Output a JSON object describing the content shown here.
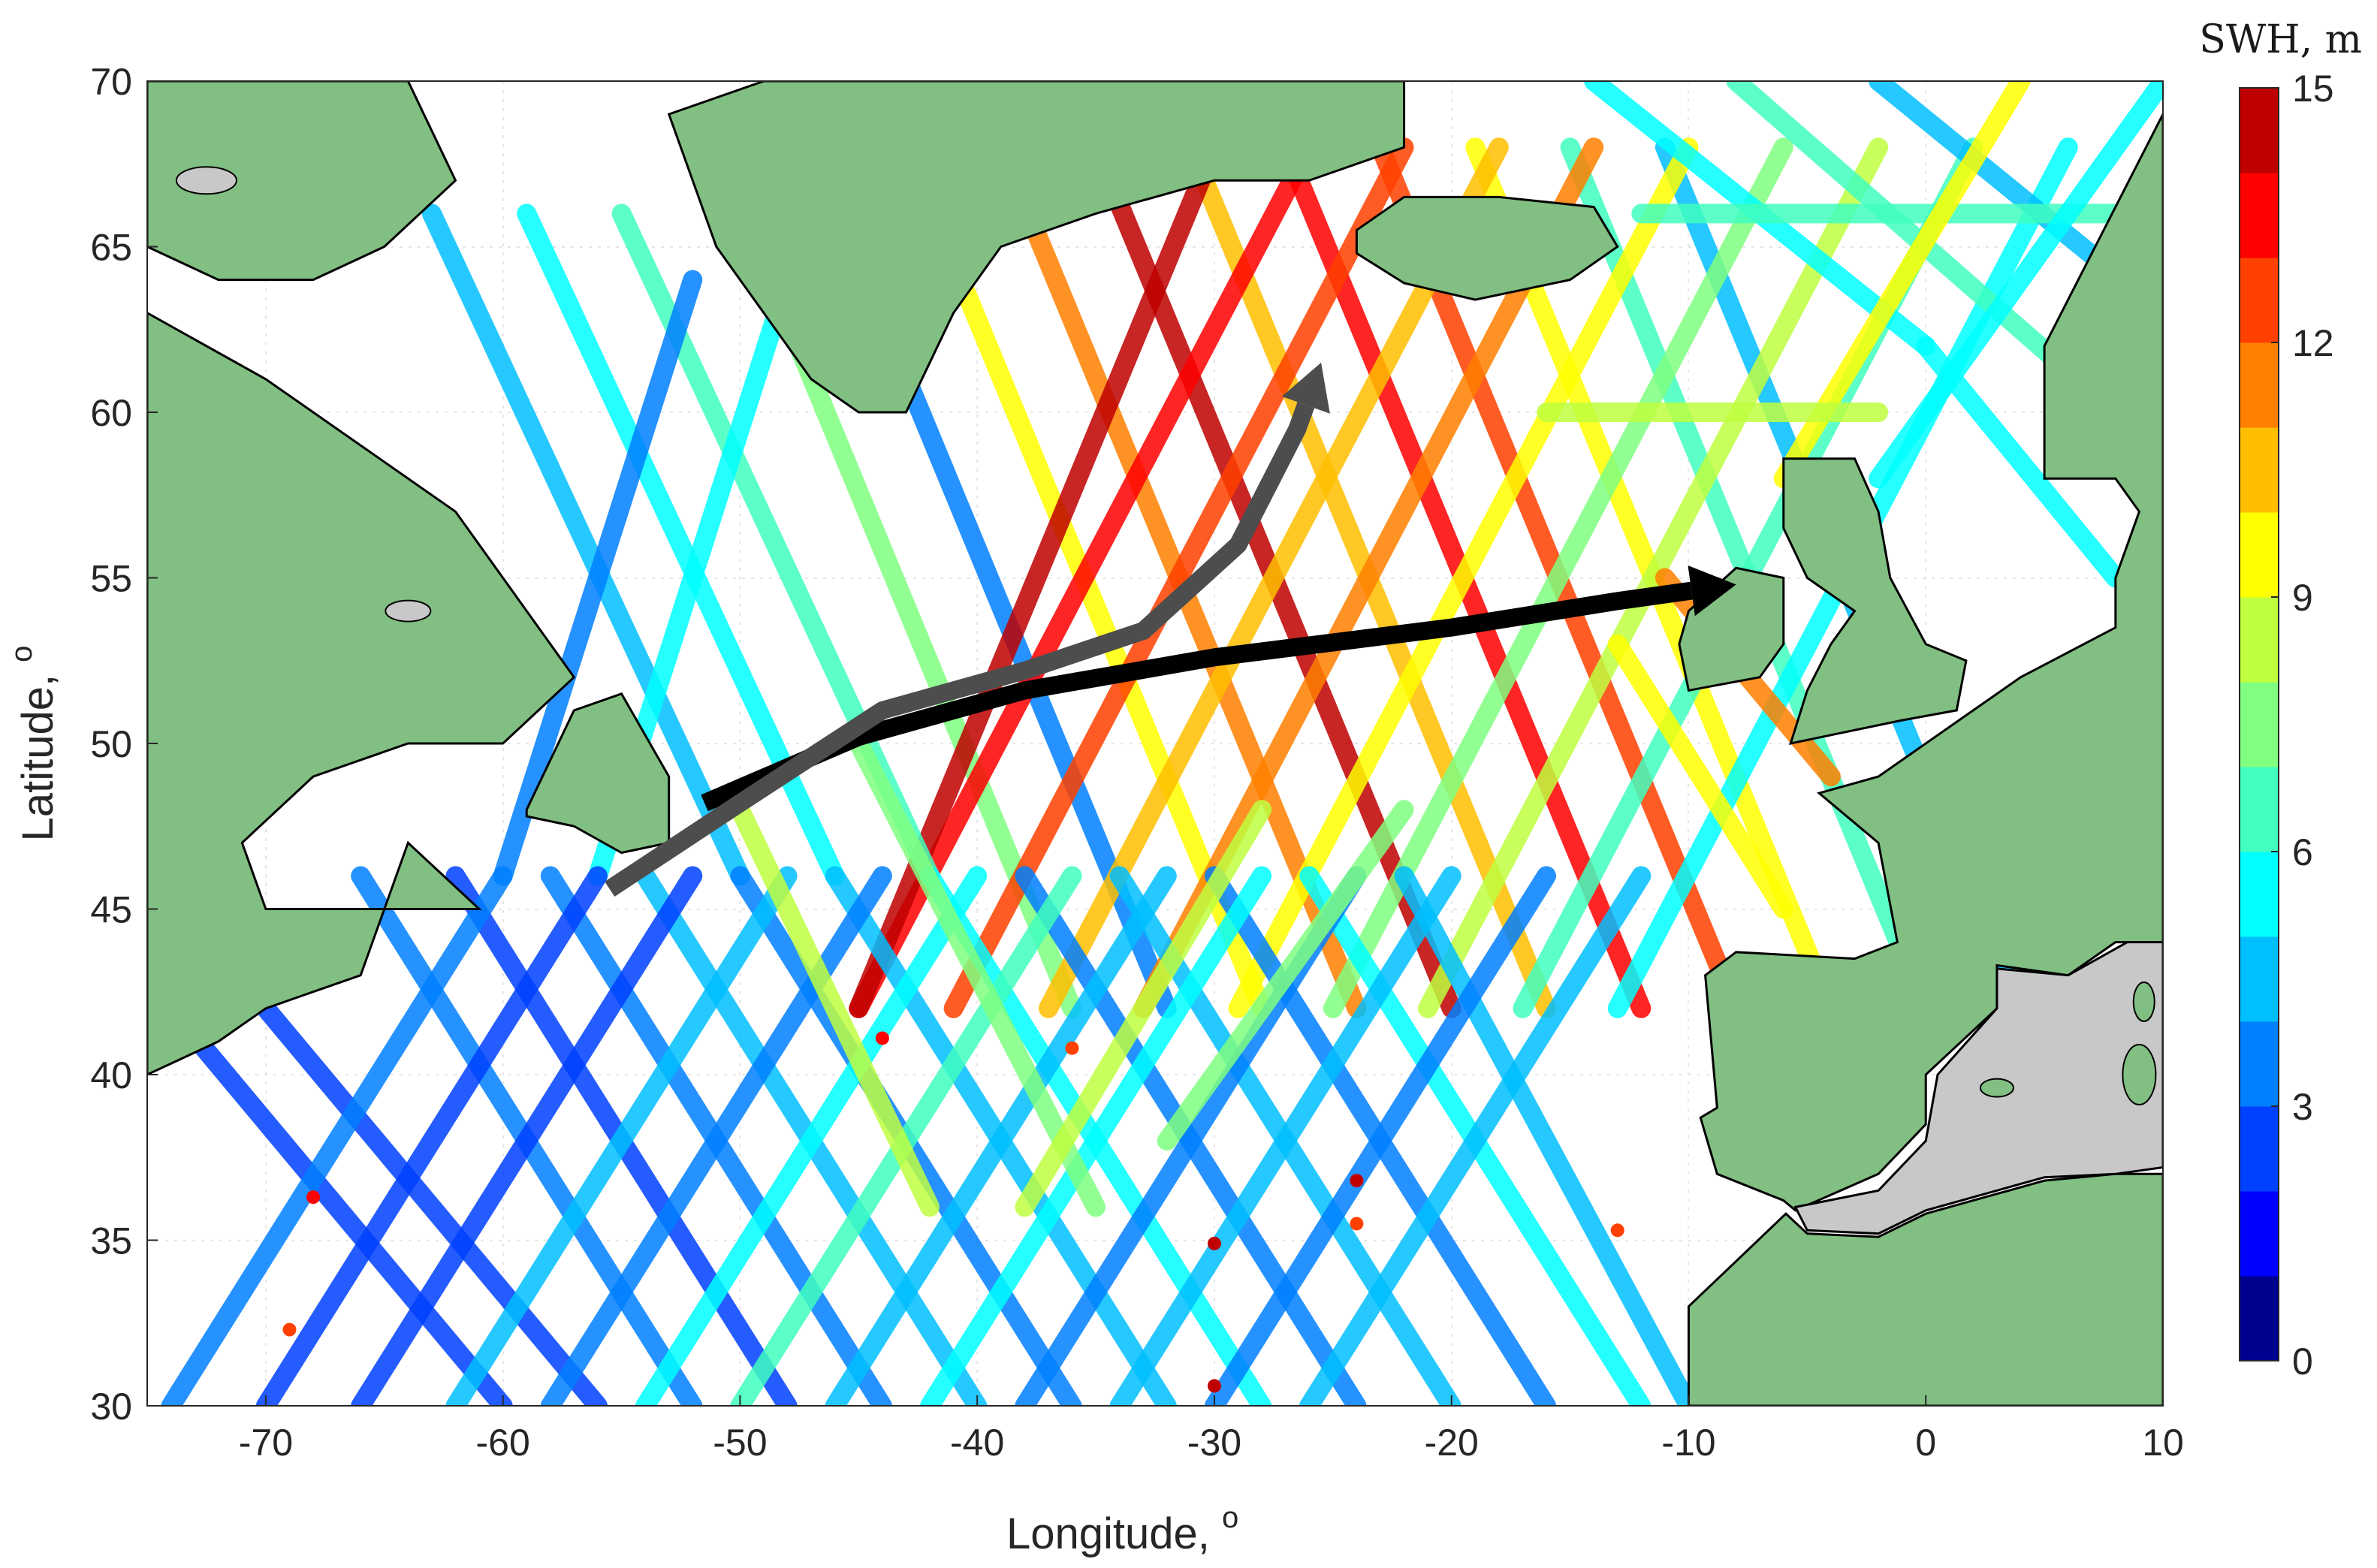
{
  "chart_data": {
    "type": "map",
    "xlabel": "Longitude, ",
    "xlabel_superscript": "o",
    "ylabel": "Latitude, ",
    "ylabel_superscript": "o",
    "xlim": [
      -75,
      10
    ],
    "ylim": [
      30,
      70
    ],
    "x_ticks": [
      "-70",
      "-60",
      "-50",
      "-40",
      "-30",
      "-20",
      "-10",
      "0",
      "10"
    ],
    "y_ticks": [
      "30",
      "35",
      "40",
      "45",
      "50",
      "55",
      "60",
      "65",
      "70"
    ],
    "colorbar": {
      "title": "SWH, m",
      "range": [
        0,
        15
      ],
      "ticks": [
        "0",
        "3",
        "6",
        "9",
        "12",
        "15"
      ],
      "colormap": [
        "#00008f",
        "#0000ff",
        "#0040ff",
        "#0080ff",
        "#00bfff",
        "#00ffff",
        "#40ffbf",
        "#80ff80",
        "#bfff40",
        "#ffff00",
        "#ffbf00",
        "#ff8000",
        "#ff4000",
        "#ff0000",
        "#bf0000"
      ]
    },
    "colors": {
      "land": "#82bf82",
      "inland_water": "#c8c8c8",
      "ocean": "#ffffff",
      "coastline": "#000000"
    },
    "storm_tracks": [
      {
        "color": "#000000",
        "points": [
          [
            -51.5,
            48.2
          ],
          [
            -45,
            50.2
          ],
          [
            -38,
            51.6
          ],
          [
            -30,
            52.6
          ],
          [
            -20,
            53.5
          ],
          [
            -13,
            54.3
          ],
          [
            -8,
            54.8
          ]
        ]
      },
      {
        "color": "#4d4d4d",
        "points": [
          [
            -55.5,
            45.6
          ],
          [
            -50,
            48.2
          ],
          [
            -44,
            51.0
          ],
          [
            -38,
            52.2
          ],
          [
            -33,
            53.4
          ],
          [
            -29,
            56.0
          ],
          [
            -26.5,
            59.5
          ],
          [
            -25.5,
            61.5
          ]
        ]
      }
    ],
    "altimeter_tracks": [
      {
        "lon": [
          -51,
          -36
        ],
        "lat": [
          68,
          42
        ],
        "swh": 7
      },
      {
        "lon": [
          -47,
          -32
        ],
        "lat": [
          68,
          42
        ],
        "swh": 3
      },
      {
        "lon": [
          -43,
          -28
        ],
        "lat": [
          68,
          42
        ],
        "swh": 9
      },
      {
        "lon": [
          -39,
          -24
        ],
        "lat": [
          68,
          42
        ],
        "swh": 11
      },
      {
        "lon": [
          -35,
          -20
        ],
        "lat": [
          68,
          42
        ],
        "swh": 14
      },
      {
        "lon": [
          -31,
          -16
        ],
        "lat": [
          68,
          42
        ],
        "swh": 10
      },
      {
        "lon": [
          -27,
          -12
        ],
        "lat": [
          68,
          42
        ],
        "swh": 13
      },
      {
        "lon": [
          -23,
          -8
        ],
        "lat": [
          68,
          42
        ],
        "swh": 12
      },
      {
        "lon": [
          -19,
          -4
        ],
        "lat": [
          68,
          42
        ],
        "swh": 9
      },
      {
        "lon": [
          -15,
          0
        ],
        "lat": [
          68,
          42
        ],
        "swh": 6
      },
      {
        "lon": [
          -11,
          4
        ],
        "lat": [
          68,
          42
        ],
        "swh": 4
      },
      {
        "lon": [
          -26,
          -45
        ],
        "lat": [
          68,
          42
        ],
        "swh": 13
      },
      {
        "lon": [
          -22,
          -41
        ],
        "lat": [
          68,
          42
        ],
        "swh": 12
      },
      {
        "lon": [
          -18,
          -37
        ],
        "lat": [
          68,
          42
        ],
        "swh": 10
      },
      {
        "lon": [
          -14,
          -33
        ],
        "lat": [
          68,
          42
        ],
        "swh": 11
      },
      {
        "lon": [
          -10,
          -29
        ],
        "lat": [
          68,
          42
        ],
        "swh": 9
      },
      {
        "lon": [
          -6,
          -25
        ],
        "lat": [
          68,
          42
        ],
        "swh": 7
      },
      {
        "lon": [
          -2,
          -21
        ],
        "lat": [
          68,
          42
        ],
        "swh": 8
      },
      {
        "lon": [
          2,
          -17
        ],
        "lat": [
          68,
          42
        ],
        "swh": 6
      },
      {
        "lon": [
          6,
          -13
        ],
        "lat": [
          68,
          42
        ],
        "swh": 5
      },
      {
        "lon": [
          -30,
          -45
        ],
        "lat": [
          68,
          42
        ],
        "swh": 14
      },
      {
        "lon": [
          -63,
          -50
        ],
        "lat": [
          66,
          46
        ],
        "swh": 4
      },
      {
        "lon": [
          -59,
          -46
        ],
        "lat": [
          66,
          46
        ],
        "swh": 5
      },
      {
        "lon": [
          -55,
          -42
        ],
        "lat": [
          66,
          46
        ],
        "swh": 6
      },
      {
        "lon": [
          -52,
          -60
        ],
        "lat": [
          64,
          46
        ],
        "swh": 3
      },
      {
        "lon": [
          -48,
          -56
        ],
        "lat": [
          64,
          46
        ],
        "swh": 5
      },
      {
        "lon": [
          -74,
          -60
        ],
        "lat": [
          42,
          30
        ],
        "swh": 2
      },
      {
        "lon": [
          -70,
          -56
        ],
        "lat": [
          42,
          30
        ],
        "swh": 2
      },
      {
        "lon": [
          -66,
          -52
        ],
        "lat": [
          46,
          30
        ],
        "swh": 3
      },
      {
        "lon": [
          -62,
          -48
        ],
        "lat": [
          46,
          30
        ],
        "swh": 2
      },
      {
        "lon": [
          -58,
          -44
        ],
        "lat": [
          46,
          30
        ],
        "swh": 3
      },
      {
        "lon": [
          -54,
          -40
        ],
        "lat": [
          46,
          30
        ],
        "swh": 4
      },
      {
        "lon": [
          -50,
          -36
        ],
        "lat": [
          46,
          30
        ],
        "swh": 3
      },
      {
        "lon": [
          -46,
          -32
        ],
        "lat": [
          46,
          30
        ],
        "swh": 4
      },
      {
        "lon": [
          -42,
          -28
        ],
        "lat": [
          46,
          30
        ],
        "swh": 5
      },
      {
        "lon": [
          -38,
          -24
        ],
        "lat": [
          46,
          30
        ],
        "swh": 3
      },
      {
        "lon": [
          -34,
          -20
        ],
        "lat": [
          46,
          30
        ],
        "swh": 4
      },
      {
        "lon": [
          -30,
          -16
        ],
        "lat": [
          46,
          30
        ],
        "swh": 3
      },
      {
        "lon": [
          -26,
          -12
        ],
        "lat": [
          46,
          30
        ],
        "swh": 5
      },
      {
        "lon": [
          -22,
          -10
        ],
        "lat": [
          46,
          30
        ],
        "swh": 4
      },
      {
        "lon": [
          -60,
          -74
        ],
        "lat": [
          46,
          30
        ],
        "swh": 3
      },
      {
        "lon": [
          -56,
          -70
        ],
        "lat": [
          46,
          30
        ],
        "swh": 2
      },
      {
        "lon": [
          -52,
          -66
        ],
        "lat": [
          46,
          30
        ],
        "swh": 2
      },
      {
        "lon": [
          -48,
          -62
        ],
        "lat": [
          46,
          30
        ],
        "swh": 4
      },
      {
        "lon": [
          -44,
          -58
        ],
        "lat": [
          46,
          30
        ],
        "swh": 3
      },
      {
        "lon": [
          -40,
          -54
        ],
        "lat": [
          46,
          30
        ],
        "swh": 5
      },
      {
        "lon": [
          -36,
          -50
        ],
        "lat": [
          46,
          30
        ],
        "swh": 6
      },
      {
        "lon": [
          -32,
          -46
        ],
        "lat": [
          46,
          30
        ],
        "swh": 4
      },
      {
        "lon": [
          -28,
          -42
        ],
        "lat": [
          46,
          30
        ],
        "swh": 5
      },
      {
        "lon": [
          -24,
          -38
        ],
        "lat": [
          46,
          30
        ],
        "swh": 3
      },
      {
        "lon": [
          -20,
          -34
        ],
        "lat": [
          46,
          30
        ],
        "swh": 4
      },
      {
        "lon": [
          -16,
          -30
        ],
        "lat": [
          46,
          30
        ],
        "swh": 3
      },
      {
        "lon": [
          -12,
          -26
        ],
        "lat": [
          46,
          30
        ],
        "swh": 4
      },
      {
        "lon": [
          -50,
          -42
        ],
        "lat": [
          48,
          36
        ],
        "swh": 8
      },
      {
        "lon": [
          -45,
          -35
        ],
        "lat": [
          50,
          36
        ],
        "swh": 7
      },
      {
        "lon": [
          -28,
          -38
        ],
        "lat": [
          48,
          36
        ],
        "swh": 8
      },
      {
        "lon": [
          -22,
          -32
        ],
        "lat": [
          48,
          38
        ],
        "swh": 7
      },
      {
        "lon": [
          -14,
          0
        ],
        "lat": [
          70,
          62
        ],
        "swh": 5
      },
      {
        "lon": [
          -8,
          8
        ],
        "lat": [
          70,
          60
        ],
        "swh": 6
      },
      {
        "lon": [
          -2,
          10
        ],
        "lat": [
          70,
          63
        ],
        "swh": 4
      },
      {
        "lon": [
          -12,
          10
        ],
        "lat": [
          66,
          66
        ],
        "swh": 6
      },
      {
        "lon": [
          4,
          -6
        ],
        "lat": [
          70,
          58
        ],
        "swh": 9
      },
      {
        "lon": [
          10,
          -2
        ],
        "lat": [
          70,
          58
        ],
        "swh": 5
      },
      {
        "lon": [
          0,
          8
        ],
        "lat": [
          62,
          55
        ],
        "swh": 5
      },
      {
        "lon": [
          -16,
          -2
        ],
        "lat": [
          60,
          60
        ],
        "swh": 8
      },
      {
        "lon": [
          -11,
          -4
        ],
        "lat": [
          55,
          49
        ],
        "swh": 11
      },
      {
        "lon": [
          -13,
          -6
        ],
        "lat": [
          53,
          45
        ],
        "swh": 9
      }
    ],
    "scatter_points": [
      {
        "lon": -68,
        "lat": 36.3,
        "swh": 13
      },
      {
        "lon": -69,
        "lat": 32.3,
        "swh": 12
      },
      {
        "lon": -44,
        "lat": 41.1,
        "swh": 13
      },
      {
        "lon": -36,
        "lat": 40.8,
        "swh": 12
      },
      {
        "lon": -30,
        "lat": 34.9,
        "swh": 14
      },
      {
        "lon": -30,
        "lat": 30.6,
        "swh": 14
      },
      {
        "lon": -24,
        "lat": 36.8,
        "swh": 14
      },
      {
        "lon": -24,
        "lat": 35.5,
        "swh": 12
      },
      {
        "lon": -13,
        "lat": 35.3,
        "swh": 12
      }
    ]
  }
}
